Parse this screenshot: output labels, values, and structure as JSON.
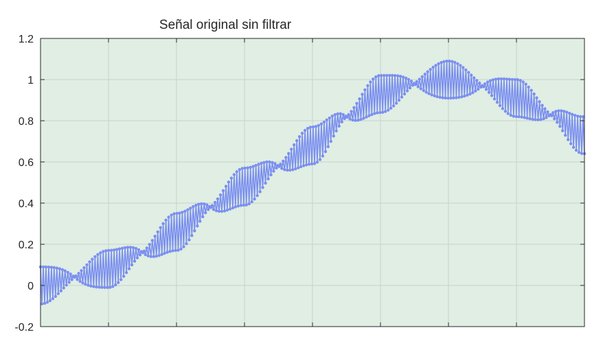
{
  "chart_data": {
    "type": "line",
    "title": "Señal original sin filtrar",
    "xlabel": "",
    "ylabel": "",
    "ylim": [
      -0.2,
      1.2
    ],
    "yticks": [
      "-0.2",
      "0",
      "0.2",
      "0.4",
      "0.6",
      "0.8",
      "1",
      "1.2"
    ],
    "xlim": [
      0,
      400
    ],
    "xticks": [],
    "grid": true,
    "colors": {
      "background": "#e0eee3",
      "series": "#7b8ff0",
      "grid": "#c9d3cb",
      "axis": "#262626"
    },
    "series": [
      {
        "marker": "dot",
        "description_points": 400,
        "envelope_x": [
          0,
          25,
          50,
          75,
          100,
          125,
          150,
          175,
          200,
          225,
          250,
          275,
          300,
          325,
          350,
          375,
          399
        ],
        "envelope_center": [
          0.0,
          0.04,
          0.08,
          0.16,
          0.26,
          0.38,
          0.48,
          0.58,
          0.68,
          0.82,
          0.93,
          0.98,
          1.0,
          0.97,
          0.91,
          0.83,
          0.73
        ],
        "envelope_amplitude": [
          0.09,
          0.01,
          0.09,
          0.01,
          0.09,
          0.01,
          0.09,
          0.01,
          0.09,
          0.01,
          0.09,
          0.01,
          0.09,
          0.01,
          0.09,
          0.01,
          0.09
        ]
      }
    ]
  }
}
